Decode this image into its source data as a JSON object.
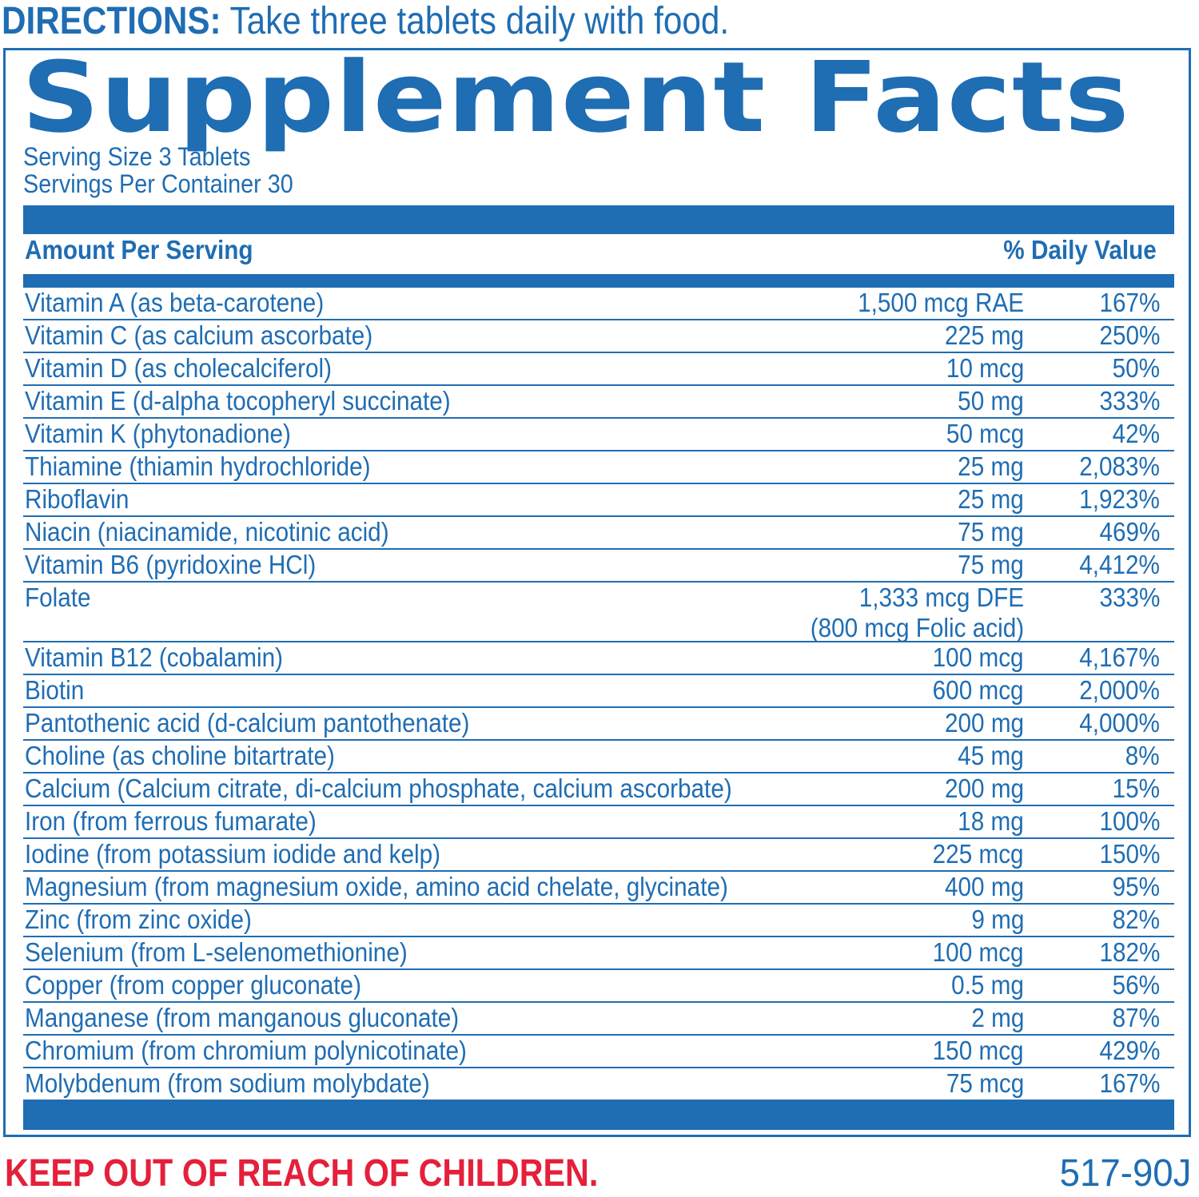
{
  "directions": {
    "label": "DIRECTIONS:",
    "text": " Take three tablets daily with food."
  },
  "panel": {
    "title": "Supplement Facts",
    "serving_size": "Serving Size 3 Tablets",
    "servings_per_container": "Servings Per Container 30",
    "header_left": "Amount Per Serving",
    "header_right": "% Daily Value",
    "rows": [
      {
        "name": "Vitamin A (as beta-carotene)",
        "amount": "1,500 mcg RAE",
        "dv": "167%"
      },
      {
        "name": "Vitamin C (as calcium ascorbate)",
        "amount": "225 mg",
        "dv": "250%"
      },
      {
        "name": "Vitamin D (as cholecalciferol)",
        "amount": "10 mcg",
        "dv": "50%"
      },
      {
        "name": "Vitamin E (d-alpha tocopheryl succinate)",
        "amount": "50 mg",
        "dv": "333%"
      },
      {
        "name": "Vitamin K (phytonadione)",
        "amount": "50 mcg",
        "dv": "42%"
      },
      {
        "name": "Thiamine (thiamin hydrochloride)",
        "amount": "25 mg",
        "dv": "2,083%"
      },
      {
        "name": "Riboflavin",
        "amount": "25 mg",
        "dv": "1,923%"
      },
      {
        "name": "Niacin (niacinamide, nicotinic acid)",
        "amount": "75 mg",
        "dv": "469%"
      },
      {
        "name": "Vitamin B6 (pyridoxine HCl)",
        "amount": "75 mg",
        "dv": "4,412%"
      },
      {
        "name": "Folate",
        "amount": "1,333 mcg DFE",
        "amount_line2": "(800 mcg Folic acid)",
        "dv": "333%"
      },
      {
        "name": "Vitamin B12 (cobalamin)",
        "amount": "100 mcg",
        "dv": "4,167%"
      },
      {
        "name": "Biotin",
        "amount": "600 mcg",
        "dv": "2,000%"
      },
      {
        "name": "Pantothenic acid (d-calcium pantothenate)",
        "amount": "200 mg",
        "dv": "4,000%"
      },
      {
        "name": "Choline (as choline bitartrate)",
        "amount": "45 mg",
        "dv": "8%"
      },
      {
        "name": "Calcium (Calcium citrate, di-calcium phosphate, calcium ascorbate)",
        "amount": "200 mg",
        "dv": "15%"
      },
      {
        "name": "Iron (from ferrous fumarate)",
        "amount": "18 mg",
        "dv": "100%"
      },
      {
        "name": "Iodine (from potassium iodide and kelp)",
        "amount": "225 mcg",
        "dv": "150%"
      },
      {
        "name": "Magnesium (from magnesium oxide, amino acid chelate, glycinate)",
        "amount": "400 mg",
        "dv": "95%"
      },
      {
        "name": "Zinc (from zinc oxide)",
        "amount": "9 mg",
        "dv": "82%"
      },
      {
        "name": "Selenium (from L-selenomethionine)",
        "amount": "100 mcg",
        "dv": "182%"
      },
      {
        "name": "Copper (from copper gluconate)",
        "amount": "0.5 mg",
        "dv": "56%"
      },
      {
        "name": "Manganese (from manganous gluconate)",
        "amount": "2 mg",
        "dv": "87%"
      },
      {
        "name": "Chromium (from chromium polynicotinate)",
        "amount": "150 mcg",
        "dv": "429%"
      },
      {
        "name": "Molybdenum (from sodium molybdate)",
        "amount": "75 mcg",
        "dv": "167%"
      }
    ]
  },
  "warning": "KEEP OUT OF REACH OF CHILDREN.",
  "product_code": "517-90J",
  "colors": {
    "brand_blue": "#1f6db3",
    "warning_red": "#e4203b"
  }
}
